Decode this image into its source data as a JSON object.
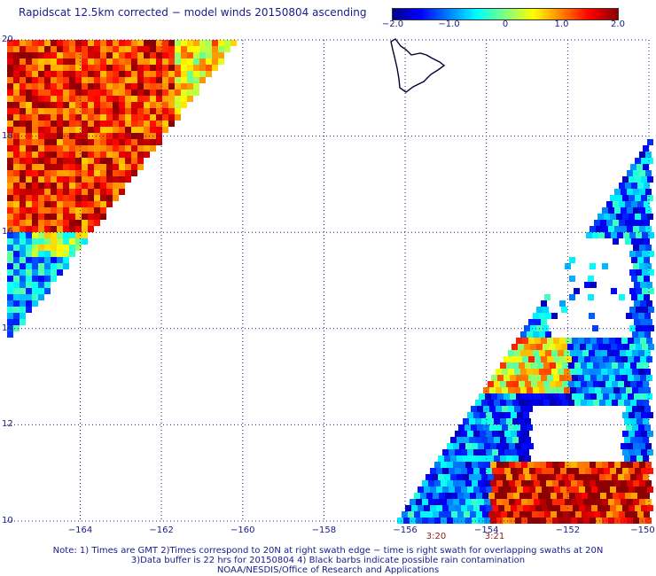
{
  "title": "Rapidscat 12.5km corrected − model winds 20150804 ascending",
  "colorbar": {
    "ticks": [
      "−2.0",
      "−1.0",
      "0",
      "1.0",
      "2.0"
    ],
    "tick_values": [
      -2.0,
      -1.0,
      0,
      1.0,
      2.0
    ],
    "range": [
      -2.0,
      2.0
    ],
    "colors": [
      "#00008b",
      "#0000ff",
      "#0080ff",
      "#00ffff",
      "#80ff80",
      "#ffff00",
      "#ff8000",
      "#ff0000",
      "#8b0000"
    ]
  },
  "map": {
    "lat_labels": [
      "20",
      "18",
      "16",
      "14",
      "12",
      "10"
    ],
    "lat_values": [
      20,
      18,
      16,
      14,
      12,
      10
    ],
    "lon_labels": [
      "−164",
      "−162",
      "−160",
      "−158",
      "−156",
      "−154",
      "−152",
      "−150"
    ],
    "lon_values": [
      -164,
      -162,
      -160,
      -158,
      -156,
      -154,
      -152,
      -150
    ],
    "lat_range": [
      10,
      20
    ],
    "lon_range": [
      -165.8,
      -150
    ],
    "grid": "dotted",
    "land": "Big Island of Hawaii outline",
    "swath_times": [
      "3:20",
      "3:21"
    ],
    "swath_time_lons": [
      -155.5,
      -154.2
    ]
  },
  "notes": [
    "Note: 1) Times are GMT 2)Times correspond to 20N at right swath edge − time is right swath for overlapping swaths at 20N",
    "3)Data buffer is 22 hrs for 20150804 4) Black barbs indicate possible rain contamination",
    "NOAA/NESDIS/Office of Research and Applications"
  ]
}
